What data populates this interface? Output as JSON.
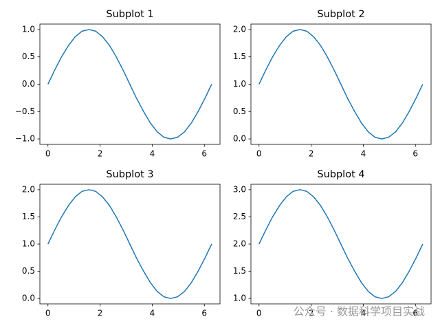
{
  "chart_data": [
    {
      "type": "line",
      "title": "Subplot 1",
      "color": "#1f77b4",
      "x": [
        0,
        0.26,
        0.52,
        0.79,
        1.05,
        1.31,
        1.57,
        1.83,
        2.09,
        2.36,
        2.62,
        2.88,
        3.14,
        3.4,
        3.67,
        3.93,
        4.19,
        4.45,
        4.71,
        4.97,
        5.24,
        5.5,
        5.76,
        6.02,
        6.28
      ],
      "values": [
        0,
        0.26,
        0.5,
        0.71,
        0.87,
        0.97,
        1,
        0.97,
        0.87,
        0.71,
        0.5,
        0.26,
        0,
        -0.26,
        -0.5,
        -0.71,
        -0.87,
        -0.97,
        -1,
        -0.97,
        -0.87,
        -0.71,
        -0.5,
        -0.26,
        0
      ],
      "xlim": [
        -0.31,
        6.6
      ],
      "xticks": [
        0,
        2,
        4,
        6
      ],
      "ylim": [
        -1.1,
        1.1
      ],
      "yticks": [
        {
          "value": -1,
          "label": "−1.0"
        },
        {
          "value": -0.5,
          "label": "−0.5"
        },
        {
          "value": 0,
          "label": "0.0"
        },
        {
          "value": 0.5,
          "label": "0.5"
        },
        {
          "value": 1,
          "label": "1.0"
        }
      ]
    },
    {
      "type": "line",
      "title": "Subplot 2",
      "color": "#1f77b4",
      "x": [
        0,
        0.26,
        0.52,
        0.79,
        1.05,
        1.31,
        1.57,
        1.83,
        2.09,
        2.36,
        2.62,
        2.88,
        3.14,
        3.4,
        3.67,
        3.93,
        4.19,
        4.45,
        4.71,
        4.97,
        5.24,
        5.5,
        5.76,
        6.02,
        6.28
      ],
      "values": [
        1,
        1.26,
        1.5,
        1.71,
        1.87,
        1.97,
        2,
        1.97,
        1.87,
        1.71,
        1.5,
        1.26,
        1,
        0.74,
        0.5,
        0.29,
        0.13,
        0.03,
        0,
        0.03,
        0.13,
        0.29,
        0.5,
        0.74,
        1
      ],
      "xlim": [
        -0.31,
        6.6
      ],
      "xticks": [
        0,
        2,
        4,
        6
      ],
      "ylim": [
        -0.1,
        2.1
      ],
      "yticks": [
        {
          "value": 0,
          "label": "0.0"
        },
        {
          "value": 0.5,
          "label": "0.5"
        },
        {
          "value": 1,
          "label": "1.0"
        },
        {
          "value": 1.5,
          "label": "1.5"
        },
        {
          "value": 2,
          "label": "2.0"
        }
      ]
    },
    {
      "type": "line",
      "title": "Subplot 3",
      "color": "#1f77b4",
      "x": [
        0,
        0.26,
        0.52,
        0.79,
        1.05,
        1.31,
        1.57,
        1.83,
        2.09,
        2.36,
        2.62,
        2.88,
        3.14,
        3.4,
        3.67,
        3.93,
        4.19,
        4.45,
        4.71,
        4.97,
        5.24,
        5.5,
        5.76,
        6.02,
        6.28
      ],
      "values": [
        1,
        1.26,
        1.5,
        1.71,
        1.87,
        1.97,
        2,
        1.97,
        1.87,
        1.71,
        1.5,
        1.26,
        1,
        0.74,
        0.5,
        0.29,
        0.13,
        0.03,
        0,
        0.03,
        0.13,
        0.29,
        0.5,
        0.74,
        1
      ],
      "xlim": [
        -0.31,
        6.6
      ],
      "xticks": [
        0,
        2,
        4,
        6
      ],
      "ylim": [
        -0.1,
        2.1
      ],
      "yticks": [
        {
          "value": 0,
          "label": "0.0"
        },
        {
          "value": 0.5,
          "label": "0.5"
        },
        {
          "value": 1,
          "label": "1.0"
        },
        {
          "value": 1.5,
          "label": "1.5"
        },
        {
          "value": 2,
          "label": "2.0"
        }
      ]
    },
    {
      "type": "line",
      "title": "Subplot 4",
      "color": "#1f77b4",
      "x": [
        0,
        0.26,
        0.52,
        0.79,
        1.05,
        1.31,
        1.57,
        1.83,
        2.09,
        2.36,
        2.62,
        2.88,
        3.14,
        3.4,
        3.67,
        3.93,
        4.19,
        4.45,
        4.71,
        4.97,
        5.24,
        5.5,
        5.76,
        6.02,
        6.28
      ],
      "values": [
        2,
        2.26,
        2.5,
        2.71,
        2.87,
        2.97,
        3,
        2.97,
        2.87,
        2.71,
        2.5,
        2.26,
        2,
        1.74,
        1.5,
        1.29,
        1.13,
        1.03,
        1,
        1.03,
        1.13,
        1.29,
        1.5,
        1.74,
        2
      ],
      "xlim": [
        -0.31,
        6.6
      ],
      "xticks": [
        0,
        2,
        4,
        6
      ],
      "ylim": [
        0.9,
        3.1
      ],
      "yticks": [
        {
          "value": 1,
          "label": "1.0"
        },
        {
          "value": 1.5,
          "label": "1.5"
        },
        {
          "value": 2,
          "label": "2.0"
        },
        {
          "value": 2.5,
          "label": "2.5"
        },
        {
          "value": 3,
          "label": "3.0"
        }
      ]
    }
  ],
  "watermark": "公众号 · 数据科学项目实战"
}
